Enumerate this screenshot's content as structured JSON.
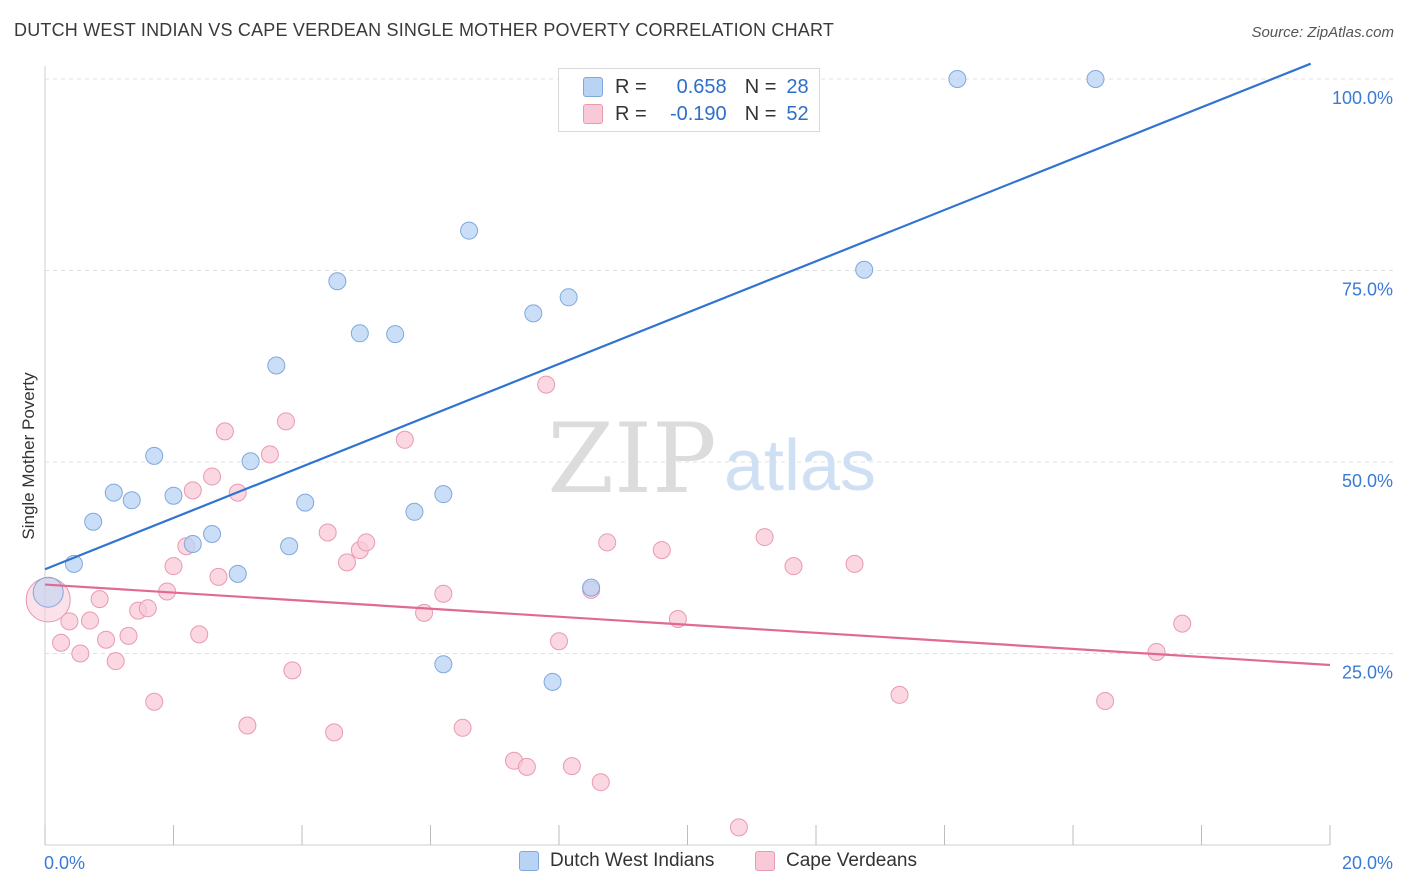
{
  "title": "DUTCH WEST INDIAN VS CAPE VERDEAN SINGLE MOTHER POVERTY CORRELATION CHART",
  "source": "Source: ZipAtlas.com",
  "watermark": {
    "zip": "ZIP",
    "atlas": "atlas"
  },
  "legend": {
    "r_label": "R =",
    "n_label": "N =",
    "rows": [
      {
        "r": "0.658",
        "n": "28"
      },
      {
        "r": "-0.190",
        "n": "52"
      }
    ]
  },
  "colors": {
    "blue_fill": "#b9d3f4",
    "blue_stroke": "#7fa8dd",
    "blue_line": "#2f74d0",
    "pink_fill": "#f8c9d7",
    "pink_stroke": "#e89ab3",
    "pink_line": "#e06a93",
    "tick_label": "#3a7ad6",
    "grid": "#e0e0e0"
  },
  "chart_data": {
    "type": "scatter",
    "title": "DUTCH WEST INDIAN VS CAPE VERDEAN SINGLE MOTHER POVERTY CORRELATION CHART",
    "xlabel": "",
    "ylabel": "Single Mother Poverty",
    "xlim": [
      0,
      20
    ],
    "ylim": [
      0,
      102
    ],
    "x_tick_labels": [
      "0.0%",
      "20.0%"
    ],
    "y_ticks": [
      25,
      50,
      75,
      100
    ],
    "y_tick_labels": [
      "25.0%",
      "50.0%",
      "75.0%",
      "100.0%"
    ],
    "grid": true,
    "legend_position": "top-center",
    "series": [
      {
        "name": "Dutch West Indians",
        "r": 0.658,
        "n": 28,
        "trend": [
          [
            0,
            36.0
          ],
          [
            19.7,
            102
          ]
        ],
        "points": [
          [
            0.05,
            33.0
          ],
          [
            0.45,
            36.7
          ],
          [
            0.75,
            42.2
          ],
          [
            1.07,
            46.0
          ],
          [
            1.35,
            45.0
          ],
          [
            1.7,
            50.8
          ],
          [
            2.0,
            45.6
          ],
          [
            2.3,
            39.3
          ],
          [
            2.6,
            40.6
          ],
          [
            3.0,
            35.4
          ],
          [
            3.2,
            50.1
          ],
          [
            3.6,
            62.6
          ],
          [
            3.8,
            39.0
          ],
          [
            4.05,
            44.7
          ],
          [
            4.55,
            73.6
          ],
          [
            4.9,
            66.8
          ],
          [
            5.45,
            66.7
          ],
          [
            5.75,
            43.5
          ],
          [
            6.2,
            23.6
          ],
          [
            6.2,
            45.8
          ],
          [
            6.6,
            80.2
          ],
          [
            7.6,
            69.4
          ],
          [
            7.9,
            21.3
          ],
          [
            8.15,
            71.5
          ],
          [
            8.5,
            33.6
          ],
          [
            12.75,
            75.1
          ],
          [
            14.2,
            100.0
          ],
          [
            16.35,
            100.0
          ]
        ]
      },
      {
        "name": "Cape Verdeans",
        "r": -0.19,
        "n": 52,
        "trend": [
          [
            0,
            34.0
          ],
          [
            20,
            23.5
          ]
        ],
        "points": [
          [
            0.05,
            32.0
          ],
          [
            0.25,
            26.4
          ],
          [
            0.38,
            29.2
          ],
          [
            0.55,
            25.0
          ],
          [
            0.7,
            29.3
          ],
          [
            0.85,
            32.1
          ],
          [
            0.95,
            26.8
          ],
          [
            1.1,
            24.0
          ],
          [
            1.3,
            27.3
          ],
          [
            1.45,
            30.6
          ],
          [
            1.6,
            30.9
          ],
          [
            1.7,
            18.7
          ],
          [
            1.9,
            33.1
          ],
          [
            2.0,
            36.4
          ],
          [
            2.2,
            39.0
          ],
          [
            2.3,
            46.3
          ],
          [
            2.4,
            27.5
          ],
          [
            2.6,
            48.1
          ],
          [
            2.7,
            35.0
          ],
          [
            2.8,
            54.0
          ],
          [
            3.0,
            46.0
          ],
          [
            3.15,
            15.6
          ],
          [
            3.5,
            51.0
          ],
          [
            3.75,
            55.3
          ],
          [
            3.85,
            22.8
          ],
          [
            4.4,
            40.8
          ],
          [
            4.5,
            14.7
          ],
          [
            4.7,
            36.9
          ],
          [
            4.9,
            38.5
          ],
          [
            5.0,
            39.5
          ],
          [
            5.6,
            52.9
          ],
          [
            5.9,
            30.3
          ],
          [
            6.2,
            32.8
          ],
          [
            6.5,
            15.3
          ],
          [
            7.3,
            11.0
          ],
          [
            7.5,
            10.2
          ],
          [
            7.8,
            60.1
          ],
          [
            8.0,
            26.6
          ],
          [
            8.2,
            10.3
          ],
          [
            8.5,
            33.3
          ],
          [
            8.65,
            8.2
          ],
          [
            8.75,
            39.5
          ],
          [
            9.6,
            38.5
          ],
          [
            9.85,
            29.5
          ],
          [
            10.8,
            2.3
          ],
          [
            11.2,
            40.2
          ],
          [
            11.65,
            36.4
          ],
          [
            12.6,
            36.7
          ],
          [
            13.3,
            19.6
          ],
          [
            16.5,
            18.8
          ],
          [
            17.3,
            25.2
          ],
          [
            17.7,
            28.9
          ]
        ]
      }
    ]
  }
}
